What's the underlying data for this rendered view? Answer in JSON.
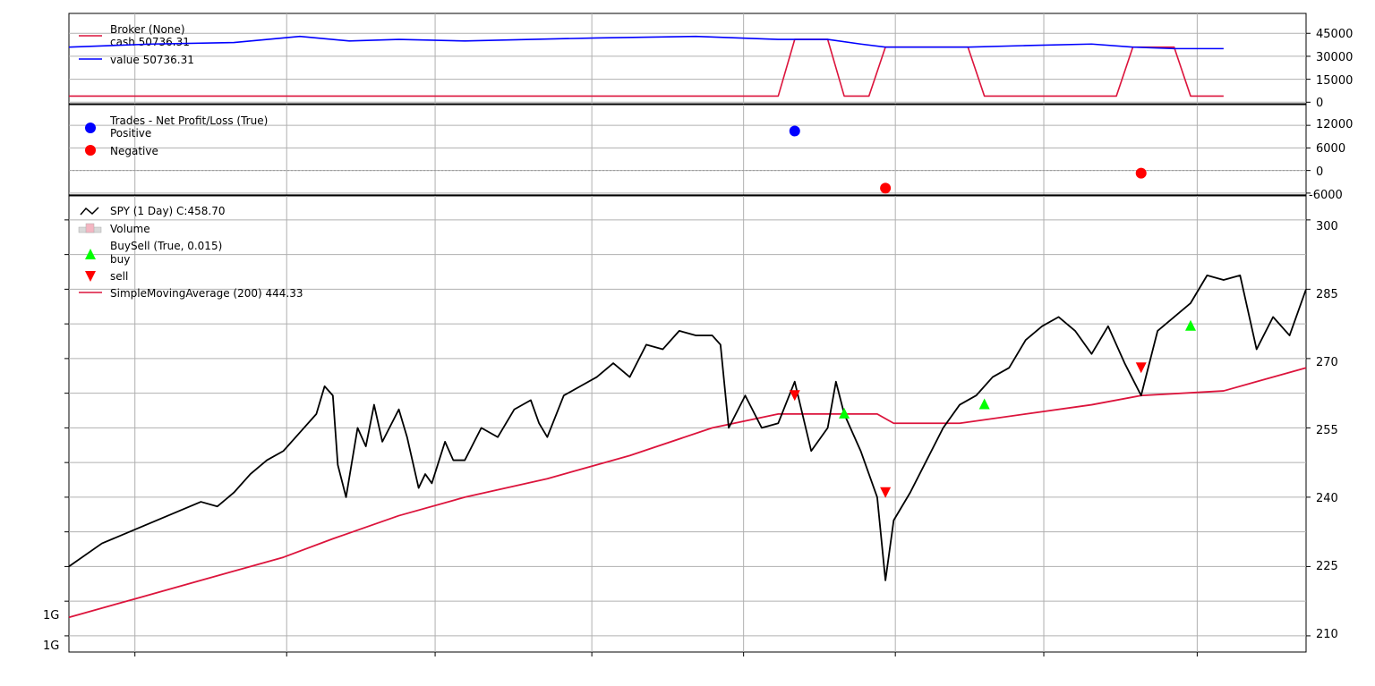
{
  "chart_data": [
    {
      "panel": "broker",
      "type": "line",
      "legend": {
        "placement": "upper-left",
        "entries": [
          "Broker (None)",
          "cash 50736.31",
          "value 50736.31"
        ]
      },
      "yticks": [
        "0",
        "15000",
        "30000",
        "45000"
      ],
      "yrange": [
        -1000,
        58000
      ],
      "grid": true,
      "colors": {
        "cash": "#dc143c",
        "value": "#0000ff"
      },
      "series": [
        {
          "name": "cash",
          "points": [
            [
              0,
              4000
            ],
            [
              430,
              4000
            ],
            [
              440,
              41000
            ],
            [
              460,
              41000
            ],
            [
              470,
              4000
            ],
            [
              485,
              4000
            ],
            [
              495,
              36000
            ],
            [
              545,
              36000
            ],
            [
              555,
              4000
            ],
            [
              635,
              4000
            ],
            [
              645,
              36000
            ],
            [
              670,
              36000
            ],
            [
              680,
              4000
            ],
            [
              700,
              4000
            ]
          ]
        },
        {
          "name": "value",
          "points": [
            [
              0,
              36000
            ],
            [
              50,
              38000
            ],
            [
              100,
              39000
            ],
            [
              140,
              43000
            ],
            [
              170,
              40000
            ],
            [
              200,
              41000
            ],
            [
              240,
              40000
            ],
            [
              280,
              41000
            ],
            [
              320,
              42000
            ],
            [
              380,
              43000
            ],
            [
              430,
              41000
            ],
            [
              460,
              41000
            ],
            [
              480,
              38000
            ],
            [
              495,
              36000
            ],
            [
              545,
              36000
            ],
            [
              580,
              37000
            ],
            [
              620,
              38000
            ],
            [
              645,
              36000
            ],
            [
              670,
              35000
            ],
            [
              700,
              35000
            ]
          ]
        }
      ]
    },
    {
      "panel": "trades",
      "type": "scatter",
      "legend": {
        "placement": "upper-left",
        "entries": [
          "Trades - Net Profit/Loss (True)",
          "Positive",
          "Negative"
        ]
      },
      "yticks": [
        "-6000",
        "0",
        "6000",
        "12000"
      ],
      "yrange": [
        -6500,
        17500
      ],
      "grid": true,
      "colors": {
        "positive": "#0000ff",
        "negative": "#ff0000"
      },
      "positive": [
        [
          440,
          10500
        ]
      ],
      "negative": [
        [
          495,
          -4700
        ],
        [
          650,
          -700
        ]
      ]
    },
    {
      "panel": "price",
      "type": "line",
      "legend": {
        "placement": "upper-left",
        "entries": [
          "SPY (1 Day) C:458.70",
          "Volume",
          "BuySell (True, 0.015)",
          "buy",
          "sell",
          "SimpleMovingAverage (200) 444.33"
        ]
      },
      "yticks": [
        "210",
        "225",
        "240",
        "255",
        "270",
        "285",
        "300"
      ],
      "left_ticks": [
        "1G",
        "1G"
      ],
      "yrange": [
        206.5,
        305.2
      ],
      "grid": true,
      "colors": {
        "price": "#000000",
        "sma": "#dc143c",
        "buy": "#00ff00",
        "sell": "#ff0000"
      },
      "price": [
        [
          0,
          225
        ],
        [
          20,
          230
        ],
        [
          40,
          233
        ],
        [
          60,
          236
        ],
        [
          80,
          239
        ],
        [
          90,
          238
        ],
        [
          100,
          241
        ],
        [
          110,
          245
        ],
        [
          120,
          248
        ],
        [
          130,
          250
        ],
        [
          140,
          254
        ],
        [
          150,
          258
        ],
        [
          155,
          264
        ],
        [
          160,
          262
        ],
        [
          163,
          247
        ],
        [
          168,
          240
        ],
        [
          175,
          255
        ],
        [
          180,
          251
        ],
        [
          185,
          260
        ],
        [
          190,
          252
        ],
        [
          200,
          259
        ],
        [
          205,
          253
        ],
        [
          212,
          242
        ],
        [
          216,
          245
        ],
        [
          220,
          243
        ],
        [
          228,
          252
        ],
        [
          233,
          248
        ],
        [
          240,
          248
        ],
        [
          250,
          255
        ],
        [
          260,
          253
        ],
        [
          270,
          259
        ],
        [
          280,
          261
        ],
        [
          285,
          256
        ],
        [
          290,
          253
        ],
        [
          300,
          262
        ],
        [
          310,
          264
        ],
        [
          320,
          266
        ],
        [
          330,
          269
        ],
        [
          340,
          266
        ],
        [
          350,
          273
        ],
        [
          360,
          272
        ],
        [
          370,
          276
        ],
        [
          380,
          275
        ],
        [
          390,
          275
        ],
        [
          395,
          273
        ],
        [
          400,
          255
        ],
        [
          410,
          262
        ],
        [
          420,
          255
        ],
        [
          430,
          256
        ],
        [
          440,
          265
        ],
        [
          450,
          250
        ],
        [
          460,
          255
        ],
        [
          465,
          265
        ],
        [
          470,
          258
        ],
        [
          480,
          250
        ],
        [
          490,
          240
        ],
        [
          495,
          222
        ],
        [
          500,
          235
        ],
        [
          510,
          241
        ],
        [
          520,
          248
        ],
        [
          530,
          255
        ],
        [
          540,
          260
        ],
        [
          550,
          262
        ],
        [
          560,
          266
        ],
        [
          570,
          268
        ],
        [
          580,
          274
        ],
        [
          590,
          277
        ],
        [
          600,
          279
        ],
        [
          610,
          276
        ],
        [
          620,
          271
        ],
        [
          630,
          277
        ],
        [
          640,
          269
        ],
        [
          650,
          262
        ],
        [
          660,
          276
        ],
        [
          670,
          279
        ],
        [
          680,
          282
        ],
        [
          690,
          288
        ],
        [
          700,
          287
        ],
        [
          710,
          288
        ],
        [
          720,
          272
        ],
        [
          730,
          279
        ],
        [
          740,
          275
        ],
        [
          750,
          285
        ]
      ],
      "sma": [
        [
          0,
          214
        ],
        [
          40,
          218
        ],
        [
          80,
          222
        ],
        [
          130,
          227
        ],
        [
          160,
          231
        ],
        [
          200,
          236
        ],
        [
          240,
          240
        ],
        [
          290,
          244
        ],
        [
          340,
          249
        ],
        [
          390,
          255
        ],
        [
          430,
          258
        ],
        [
          470,
          258
        ],
        [
          490,
          258
        ],
        [
          500,
          256
        ],
        [
          540,
          256
        ],
        [
          580,
          258
        ],
        [
          620,
          260
        ],
        [
          650,
          262
        ],
        [
          700,
          263
        ],
        [
          750,
          268
        ]
      ],
      "buy": [
        [
          470,
          258
        ],
        [
          555,
          260
        ],
        [
          680,
          277
        ]
      ],
      "sell": [
        [
          440,
          262
        ],
        [
          495,
          241
        ],
        [
          650,
          268
        ]
      ]
    }
  ]
}
